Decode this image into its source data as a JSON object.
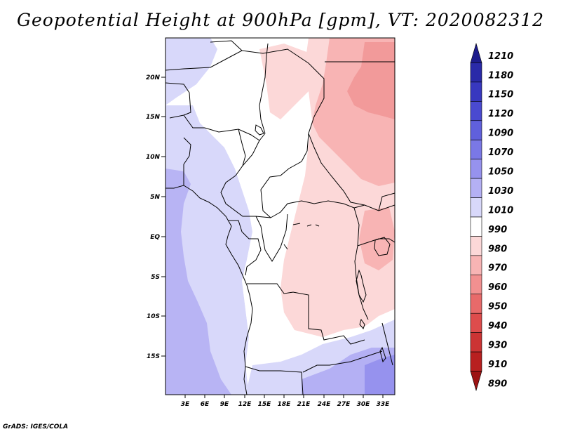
{
  "title": "Geopotential Height at 900hPa [gpm], VT: 2020082312",
  "credit": "GrADS: IGES/COLA",
  "lat_labels": [
    "20N",
    "15N",
    "10N",
    "5N",
    "EQ",
    "5S",
    "10S",
    "15S"
  ],
  "lon_labels": [
    "3E",
    "6E",
    "9E",
    "12E",
    "15E",
    "18E",
    "21E",
    "24E",
    "27E",
    "30E",
    "33E"
  ],
  "colorbar": {
    "levels": [
      "1210",
      "1180",
      "1150",
      "1120",
      "1090",
      "1070",
      "1050",
      "1030",
      "1010",
      "990",
      "980",
      "970",
      "960",
      "950",
      "940",
      "930",
      "910",
      "890"
    ],
    "colors": [
      "#1d1c8c",
      "#2a2aa8",
      "#3838bf",
      "#4a4ad0",
      "#6060dc",
      "#7a78e6",
      "#9692ee",
      "#b4b0f4",
      "#d8d8fa",
      "#ffffff",
      "#fcd8d8",
      "#f8b4b4",
      "#f29090",
      "#e86a6a",
      "#de4c4c",
      "#cc3434",
      "#b82020",
      "#9c1414"
    ]
  },
  "map_colors": {
    "ocean_dark": "#b8b4f4",
    "ocean_light": "#d8d8fa",
    "land_white": "#ffffff",
    "land_pink": "#fcd8d8",
    "land_red": "#f8b4b4",
    "land_redder": "#f29a9a",
    "south_blue": "#b4b0f4",
    "southeast_purple": "#9692ee"
  }
}
